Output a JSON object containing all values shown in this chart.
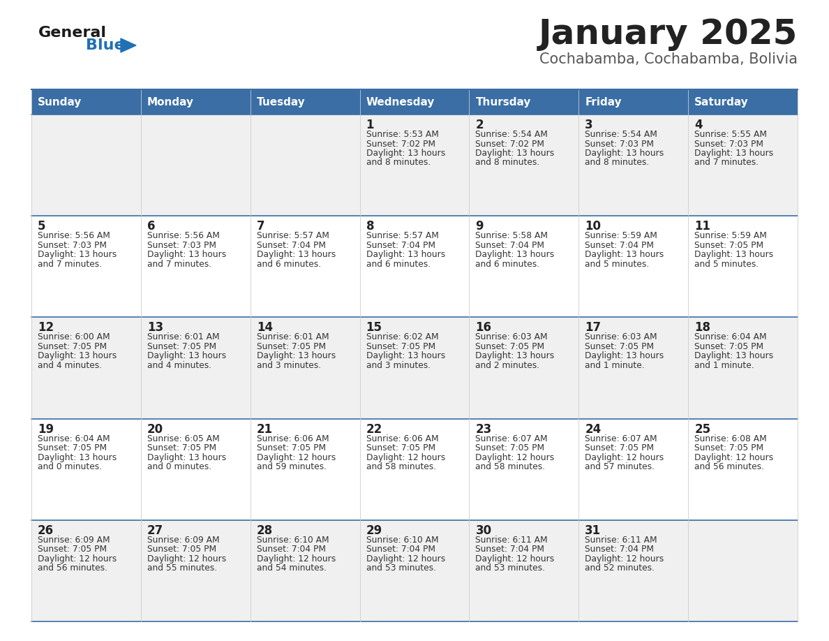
{
  "title": "January 2025",
  "subtitle": "Cochabamba, Cochabamba, Bolivia",
  "days_of_week": [
    "Sunday",
    "Monday",
    "Tuesday",
    "Wednesday",
    "Thursday",
    "Friday",
    "Saturday"
  ],
  "header_bg": "#3a6ea5",
  "header_text": "#ffffff",
  "row_bg_even": "#f0f0f0",
  "row_bg_odd": "#ffffff",
  "cell_text": "#333333",
  "day_num_color": "#222222",
  "grid_line_color": "#3a6ea5",
  "title_color": "#222222",
  "subtitle_color": "#555555",
  "logo_general_color": "#1a1a1a",
  "logo_blue_color": "#2070b4",
  "calendar": [
    [
      {
        "day": "",
        "sunrise": "",
        "sunset": "",
        "daylight": ""
      },
      {
        "day": "",
        "sunrise": "",
        "sunset": "",
        "daylight": ""
      },
      {
        "day": "",
        "sunrise": "",
        "sunset": "",
        "daylight": ""
      },
      {
        "day": "1",
        "sunrise": "5:53 AM",
        "sunset": "7:02 PM",
        "daylight": "13 hours\nand 8 minutes."
      },
      {
        "day": "2",
        "sunrise": "5:54 AM",
        "sunset": "7:02 PM",
        "daylight": "13 hours\nand 8 minutes."
      },
      {
        "day": "3",
        "sunrise": "5:54 AM",
        "sunset": "7:03 PM",
        "daylight": "13 hours\nand 8 minutes."
      },
      {
        "day": "4",
        "sunrise": "5:55 AM",
        "sunset": "7:03 PM",
        "daylight": "13 hours\nand 7 minutes."
      }
    ],
    [
      {
        "day": "5",
        "sunrise": "5:56 AM",
        "sunset": "7:03 PM",
        "daylight": "13 hours\nand 7 minutes."
      },
      {
        "day": "6",
        "sunrise": "5:56 AM",
        "sunset": "7:03 PM",
        "daylight": "13 hours\nand 7 minutes."
      },
      {
        "day": "7",
        "sunrise": "5:57 AM",
        "sunset": "7:04 PM",
        "daylight": "13 hours\nand 6 minutes."
      },
      {
        "day": "8",
        "sunrise": "5:57 AM",
        "sunset": "7:04 PM",
        "daylight": "13 hours\nand 6 minutes."
      },
      {
        "day": "9",
        "sunrise": "5:58 AM",
        "sunset": "7:04 PM",
        "daylight": "13 hours\nand 6 minutes."
      },
      {
        "day": "10",
        "sunrise": "5:59 AM",
        "sunset": "7:04 PM",
        "daylight": "13 hours\nand 5 minutes."
      },
      {
        "day": "11",
        "sunrise": "5:59 AM",
        "sunset": "7:05 PM",
        "daylight": "13 hours\nand 5 minutes."
      }
    ],
    [
      {
        "day": "12",
        "sunrise": "6:00 AM",
        "sunset": "7:05 PM",
        "daylight": "13 hours\nand 4 minutes."
      },
      {
        "day": "13",
        "sunrise": "6:01 AM",
        "sunset": "7:05 PM",
        "daylight": "13 hours\nand 4 minutes."
      },
      {
        "day": "14",
        "sunrise": "6:01 AM",
        "sunset": "7:05 PM",
        "daylight": "13 hours\nand 3 minutes."
      },
      {
        "day": "15",
        "sunrise": "6:02 AM",
        "sunset": "7:05 PM",
        "daylight": "13 hours\nand 3 minutes."
      },
      {
        "day": "16",
        "sunrise": "6:03 AM",
        "sunset": "7:05 PM",
        "daylight": "13 hours\nand 2 minutes."
      },
      {
        "day": "17",
        "sunrise": "6:03 AM",
        "sunset": "7:05 PM",
        "daylight": "13 hours\nand 1 minute."
      },
      {
        "day": "18",
        "sunrise": "6:04 AM",
        "sunset": "7:05 PM",
        "daylight": "13 hours\nand 1 minute."
      }
    ],
    [
      {
        "day": "19",
        "sunrise": "6:04 AM",
        "sunset": "7:05 PM",
        "daylight": "13 hours\nand 0 minutes."
      },
      {
        "day": "20",
        "sunrise": "6:05 AM",
        "sunset": "7:05 PM",
        "daylight": "13 hours\nand 0 minutes."
      },
      {
        "day": "21",
        "sunrise": "6:06 AM",
        "sunset": "7:05 PM",
        "daylight": "12 hours\nand 59 minutes."
      },
      {
        "day": "22",
        "sunrise": "6:06 AM",
        "sunset": "7:05 PM",
        "daylight": "12 hours\nand 58 minutes."
      },
      {
        "day": "23",
        "sunrise": "6:07 AM",
        "sunset": "7:05 PM",
        "daylight": "12 hours\nand 58 minutes."
      },
      {
        "day": "24",
        "sunrise": "6:07 AM",
        "sunset": "7:05 PM",
        "daylight": "12 hours\nand 57 minutes."
      },
      {
        "day": "25",
        "sunrise": "6:08 AM",
        "sunset": "7:05 PM",
        "daylight": "12 hours\nand 56 minutes."
      }
    ],
    [
      {
        "day": "26",
        "sunrise": "6:09 AM",
        "sunset": "7:05 PM",
        "daylight": "12 hours\nand 56 minutes."
      },
      {
        "day": "27",
        "sunrise": "6:09 AM",
        "sunset": "7:05 PM",
        "daylight": "12 hours\nand 55 minutes."
      },
      {
        "day": "28",
        "sunrise": "6:10 AM",
        "sunset": "7:04 PM",
        "daylight": "12 hours\nand 54 minutes."
      },
      {
        "day": "29",
        "sunrise": "6:10 AM",
        "sunset": "7:04 PM",
        "daylight": "12 hours\nand 53 minutes."
      },
      {
        "day": "30",
        "sunrise": "6:11 AM",
        "sunset": "7:04 PM",
        "daylight": "12 hours\nand 53 minutes."
      },
      {
        "day": "31",
        "sunrise": "6:11 AM",
        "sunset": "7:04 PM",
        "daylight": "12 hours\nand 52 minutes."
      },
      {
        "day": "",
        "sunrise": "",
        "sunset": "",
        "daylight": ""
      }
    ]
  ],
  "fig_width": 11.88,
  "fig_height": 9.18,
  "dpi": 100
}
